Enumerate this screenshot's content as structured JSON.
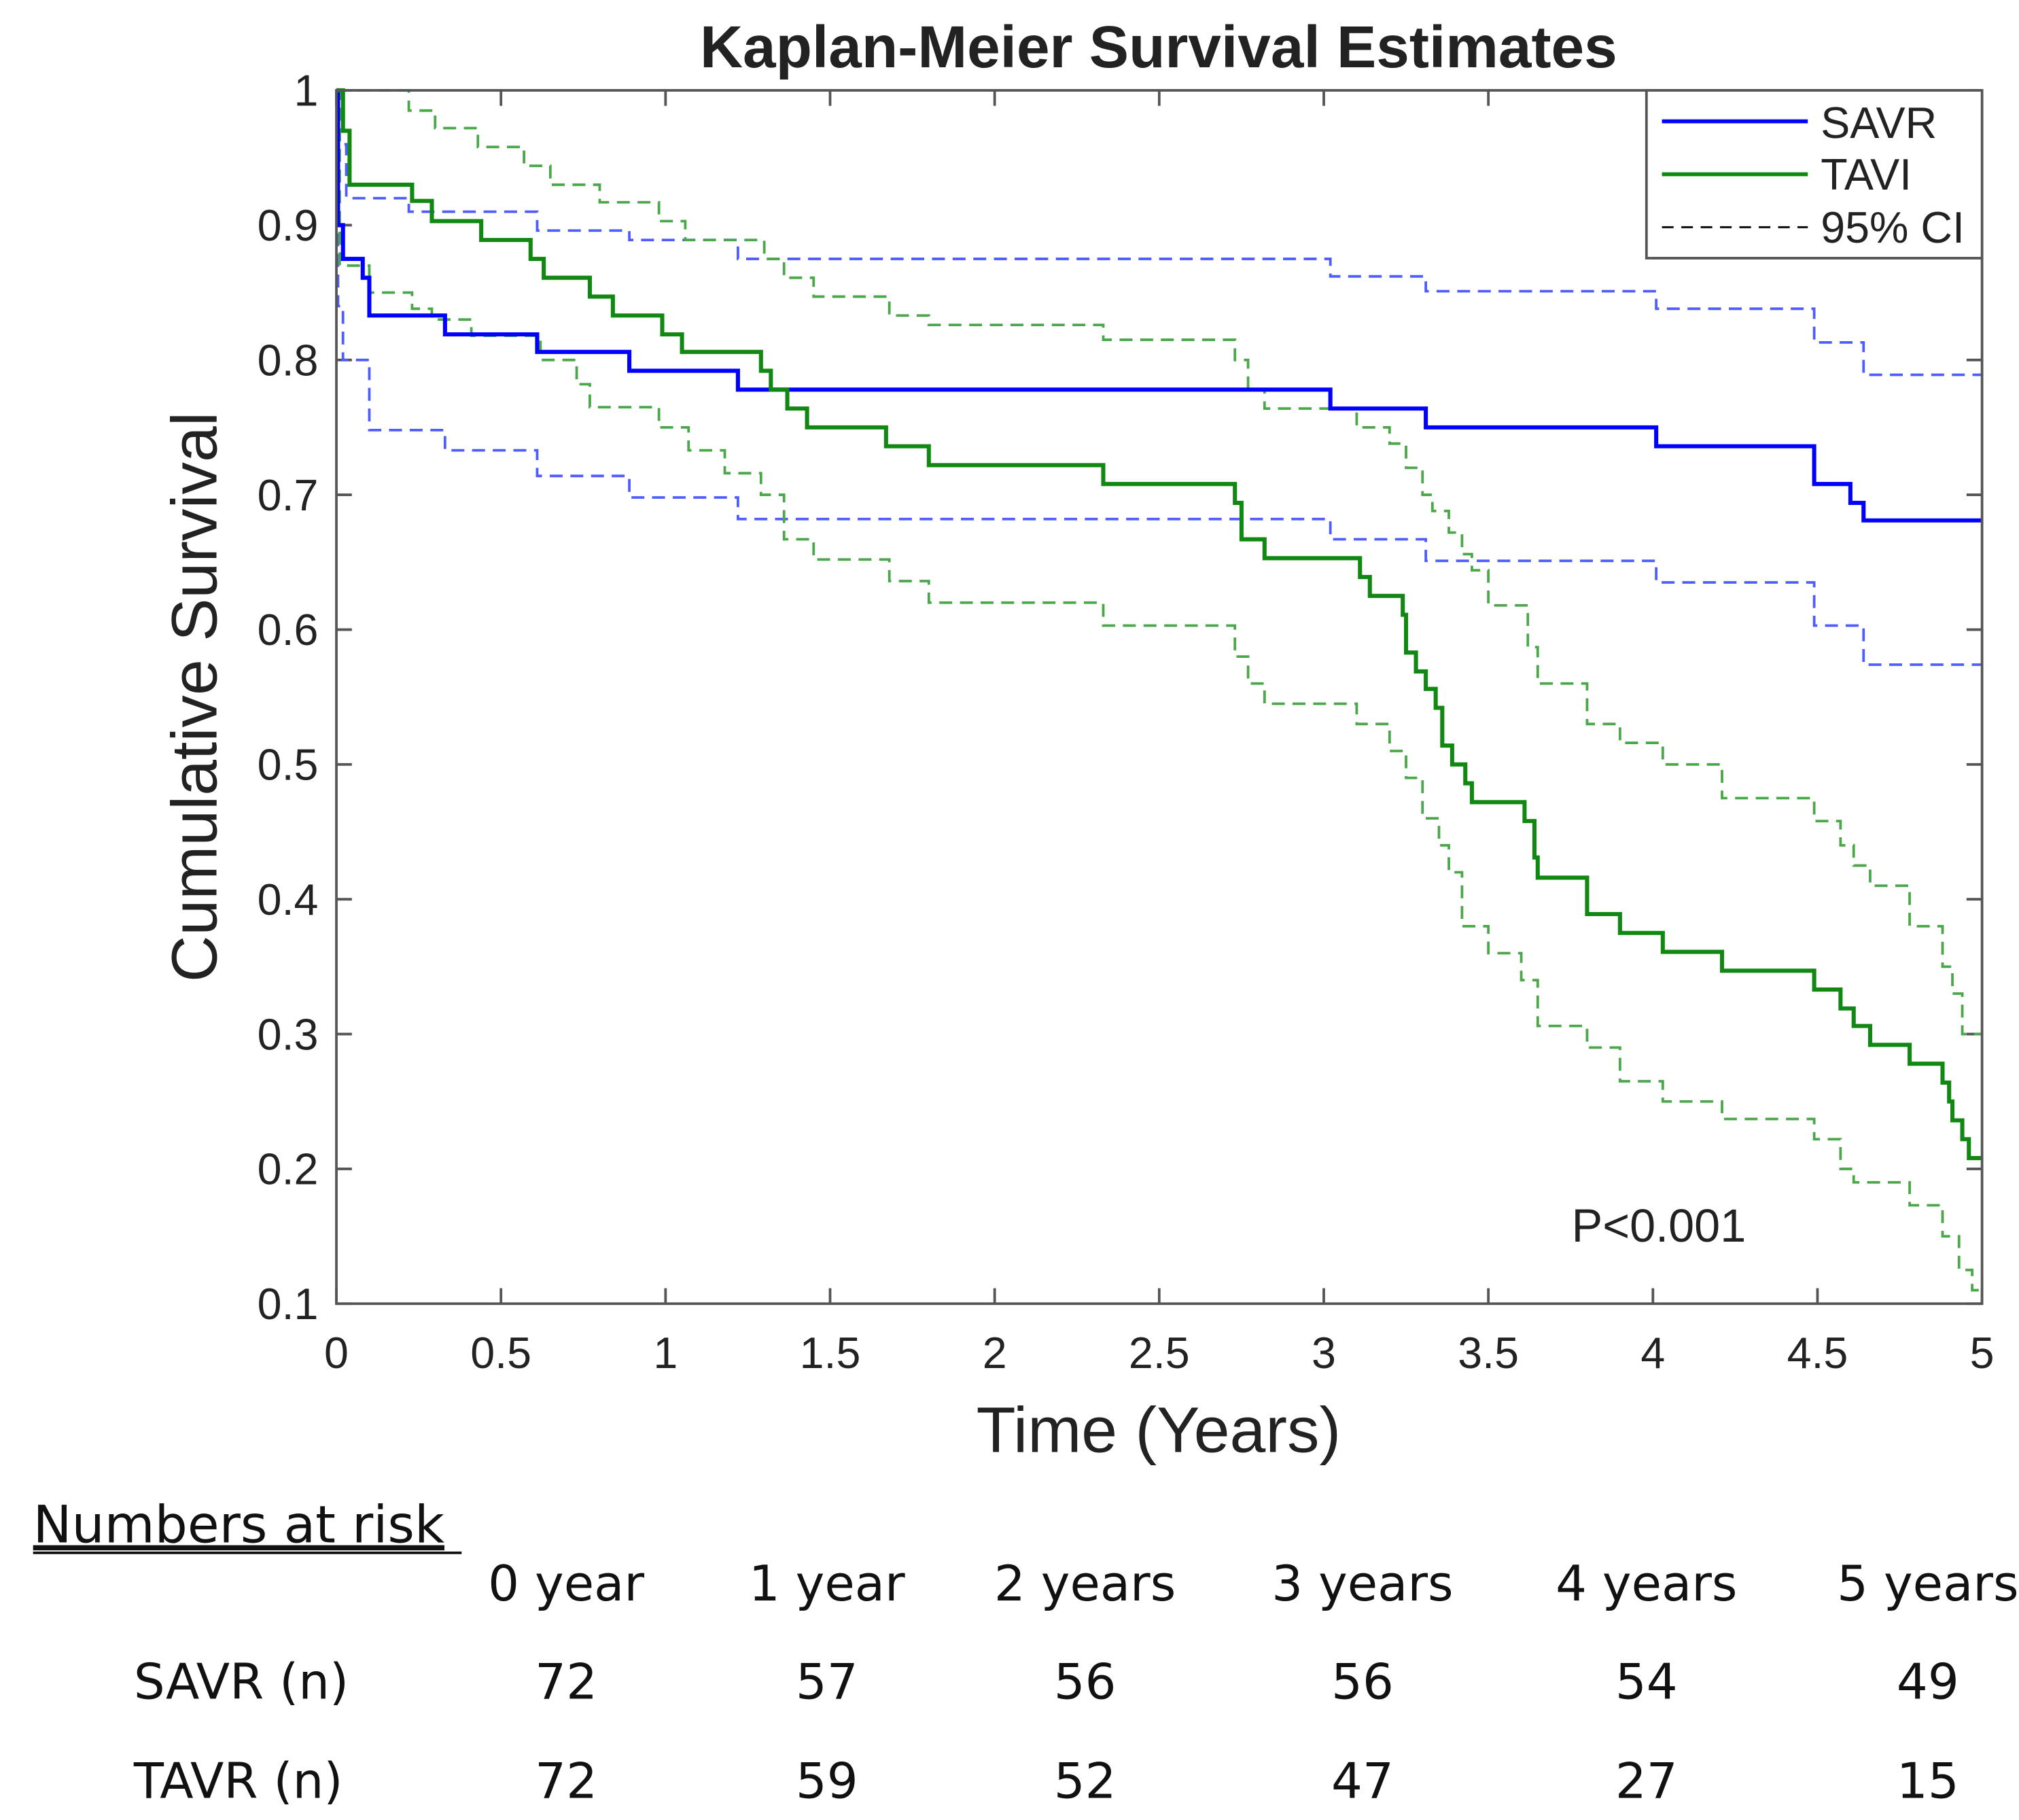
{
  "chart_data": {
    "type": "line",
    "title": "Kaplan-Meier Survival Estimates",
    "xlabel": "Time (Years)",
    "ylabel": "Cumulative Survival",
    "xlim": [
      0,
      5
    ],
    "ylim": [
      0.1,
      1
    ],
    "xticks": [
      "0",
      "0.5",
      "1",
      "1.5",
      "2",
      "2.5",
      "3",
      "3.5",
      "4",
      "4.5",
      "5"
    ],
    "yticks": [
      "0.1",
      "0.2",
      "0.3",
      "0.4",
      "0.5",
      "0.6",
      "0.7",
      "0.8",
      "0.9",
      "1"
    ],
    "grid": false,
    "legend_position": "top-right",
    "legend": [
      "SAVR",
      "TAVI",
      "95% CI"
    ],
    "annotation": "P<0.001",
    "colors": {
      "SAVR": "#0000ff",
      "TAVI": "#118811",
      "SAVR_CI": "#4f5cff",
      "TAVI_CI": "#4aa84a"
    },
    "series": [
      {
        "name": "SAVR",
        "style": "solid",
        "steps": [
          [
            0,
            1
          ],
          [
            0.005,
            0.9
          ],
          [
            0.02,
            0.875
          ],
          [
            0.08,
            0.861
          ],
          [
            0.1,
            0.833
          ],
          [
            0.33,
            0.819
          ],
          [
            0.61,
            0.806
          ],
          [
            0.89,
            0.792
          ],
          [
            1.22,
            0.778
          ],
          [
            3.02,
            0.764
          ],
          [
            3.31,
            0.75
          ],
          [
            4.01,
            0.736
          ],
          [
            4.49,
            0.708
          ],
          [
            4.6,
            0.694
          ],
          [
            4.64,
            0.681
          ],
          [
            5,
            0.681
          ]
        ]
      },
      {
        "name": "SAVR upper 95% CI",
        "style": "dashed",
        "steps": [
          [
            0,
            1
          ],
          [
            0.01,
            0.96
          ],
          [
            0.03,
            0.92
          ],
          [
            0.22,
            0.91
          ],
          [
            0.61,
            0.896
          ],
          [
            0.89,
            0.889
          ],
          [
            1.22,
            0.875
          ],
          [
            3.02,
            0.862
          ],
          [
            3.31,
            0.851
          ],
          [
            4.01,
            0.838
          ],
          [
            4.49,
            0.813
          ],
          [
            4.64,
            0.789
          ],
          [
            5,
            0.789
          ]
        ]
      },
      {
        "name": "SAVR lower 95% CI",
        "style": "dashed",
        "steps": [
          [
            0,
            1
          ],
          [
            0.005,
            0.84
          ],
          [
            0.02,
            0.8
          ],
          [
            0.1,
            0.748
          ],
          [
            0.33,
            0.733
          ],
          [
            0.61,
            0.714
          ],
          [
            0.89,
            0.698
          ],
          [
            1.22,
            0.682
          ],
          [
            3.02,
            0.667
          ],
          [
            3.31,
            0.651
          ],
          [
            4.01,
            0.635
          ],
          [
            4.49,
            0.603
          ],
          [
            4.64,
            0.574
          ],
          [
            5,
            0.574
          ]
        ]
      },
      {
        "name": "TAVI",
        "style": "solid",
        "steps": [
          [
            0,
            1
          ],
          [
            0.02,
            0.97
          ],
          [
            0.04,
            0.93
          ],
          [
            0.23,
            0.918
          ],
          [
            0.29,
            0.903
          ],
          [
            0.44,
            0.889
          ],
          [
            0.59,
            0.875
          ],
          [
            0.63,
            0.861
          ],
          [
            0.77,
            0.847
          ],
          [
            0.84,
            0.833
          ],
          [
            0.99,
            0.819
          ],
          [
            1.05,
            0.806
          ],
          [
            1.29,
            0.792
          ],
          [
            1.32,
            0.778
          ],
          [
            1.37,
            0.764
          ],
          [
            1.43,
            0.75
          ],
          [
            1.67,
            0.736
          ],
          [
            1.8,
            0.722
          ],
          [
            2.33,
            0.708
          ],
          [
            2.73,
            0.694
          ],
          [
            2.75,
            0.667
          ],
          [
            2.82,
            0.653
          ],
          [
            3.11,
            0.639
          ],
          [
            3.14,
            0.625
          ],
          [
            3.24,
            0.611
          ],
          [
            3.25,
            0.583
          ],
          [
            3.28,
            0.569
          ],
          [
            3.31,
            0.556
          ],
          [
            3.34,
            0.542
          ],
          [
            3.36,
            0.514
          ],
          [
            3.39,
            0.5
          ],
          [
            3.43,
            0.486
          ],
          [
            3.45,
            0.472
          ],
          [
            3.61,
            0.458
          ],
          [
            3.64,
            0.431
          ],
          [
            3.65,
            0.416
          ],
          [
            3.8,
            0.389
          ],
          [
            3.9,
            0.375
          ],
          [
            4.03,
            0.361
          ],
          [
            4.21,
            0.347
          ],
          [
            4.49,
            0.333
          ],
          [
            4.57,
            0.319
          ],
          [
            4.61,
            0.306
          ],
          [
            4.66,
            0.292
          ],
          [
            4.78,
            0.278
          ],
          [
            4.88,
            0.264
          ],
          [
            4.9,
            0.25
          ],
          [
            4.91,
            0.236
          ],
          [
            4.94,
            0.222
          ],
          [
            4.96,
            0.208
          ],
          [
            5,
            0.208
          ]
        ]
      },
      {
        "name": "TAVI upper 95% CI",
        "style": "dashed",
        "steps": [
          [
            0,
            1
          ],
          [
            0.22,
            0.985
          ],
          [
            0.3,
            0.972
          ],
          [
            0.43,
            0.958
          ],
          [
            0.57,
            0.944
          ],
          [
            0.65,
            0.93
          ],
          [
            0.8,
            0.917
          ],
          [
            0.98,
            0.903
          ],
          [
            1.06,
            0.889
          ],
          [
            1.3,
            0.875
          ],
          [
            1.36,
            0.861
          ],
          [
            1.45,
            0.847
          ],
          [
            1.68,
            0.833
          ],
          [
            1.8,
            0.826
          ],
          [
            2.33,
            0.815
          ],
          [
            2.73,
            0.8
          ],
          [
            2.77,
            0.778
          ],
          [
            2.82,
            0.764
          ],
          [
            3.1,
            0.75
          ],
          [
            3.2,
            0.738
          ],
          [
            3.25,
            0.72
          ],
          [
            3.3,
            0.7
          ],
          [
            3.33,
            0.688
          ],
          [
            3.38,
            0.672
          ],
          [
            3.42,
            0.656
          ],
          [
            3.45,
            0.644
          ],
          [
            3.5,
            0.618
          ],
          [
            3.62,
            0.587
          ],
          [
            3.65,
            0.56
          ],
          [
            3.8,
            0.53
          ],
          [
            3.9,
            0.516
          ],
          [
            4.03,
            0.5
          ],
          [
            4.21,
            0.475
          ],
          [
            4.49,
            0.458
          ],
          [
            4.57,
            0.44
          ],
          [
            4.61,
            0.425
          ],
          [
            4.66,
            0.41
          ],
          [
            4.78,
            0.38
          ],
          [
            4.88,
            0.35
          ],
          [
            4.91,
            0.33
          ],
          [
            4.94,
            0.3
          ],
          [
            5,
            0.3
          ]
        ]
      },
      {
        "name": "TAVI lower 95% CI",
        "style": "dashed",
        "steps": [
          [
            0,
            1
          ],
          [
            0.01,
            0.87
          ],
          [
            0.1,
            0.85
          ],
          [
            0.23,
            0.838
          ],
          [
            0.29,
            0.83
          ],
          [
            0.41,
            0.818
          ],
          [
            0.62,
            0.8
          ],
          [
            0.73,
            0.782
          ],
          [
            0.77,
            0.765
          ],
          [
            0.98,
            0.75
          ],
          [
            1.07,
            0.733
          ],
          [
            1.18,
            0.716
          ],
          [
            1.29,
            0.7
          ],
          [
            1.36,
            0.667
          ],
          [
            1.45,
            0.652
          ],
          [
            1.68,
            0.636
          ],
          [
            1.8,
            0.62
          ],
          [
            2.33,
            0.603
          ],
          [
            2.73,
            0.58
          ],
          [
            2.77,
            0.56
          ],
          [
            2.82,
            0.545
          ],
          [
            3.1,
            0.53
          ],
          [
            3.2,
            0.51
          ],
          [
            3.25,
            0.49
          ],
          [
            3.3,
            0.46
          ],
          [
            3.35,
            0.44
          ],
          [
            3.38,
            0.42
          ],
          [
            3.42,
            0.38
          ],
          [
            3.5,
            0.36
          ],
          [
            3.6,
            0.34
          ],
          [
            3.65,
            0.306
          ],
          [
            3.8,
            0.29
          ],
          [
            3.9,
            0.265
          ],
          [
            4.03,
            0.25
          ],
          [
            4.21,
            0.237
          ],
          [
            4.49,
            0.222
          ],
          [
            4.57,
            0.2
          ],
          [
            4.61,
            0.19
          ],
          [
            4.78,
            0.173
          ],
          [
            4.88,
            0.15
          ],
          [
            4.93,
            0.125
          ],
          [
            4.97,
            0.11
          ],
          [
            5,
            0.11
          ]
        ]
      }
    ]
  },
  "risk_table": {
    "title": "Numbers at risk",
    "headers": [
      "0 year",
      "1 year",
      "2 years",
      "3 years",
      "4 years",
      "5 years"
    ],
    "rows": [
      {
        "label": "SAVR (n)",
        "values": [
          "72",
          "57",
          "56",
          "56",
          "54",
          "49"
        ]
      },
      {
        "label": "TAVR (n)",
        "values": [
          "72",
          "59",
          "52",
          "47",
          "27",
          "15"
        ]
      }
    ]
  }
}
